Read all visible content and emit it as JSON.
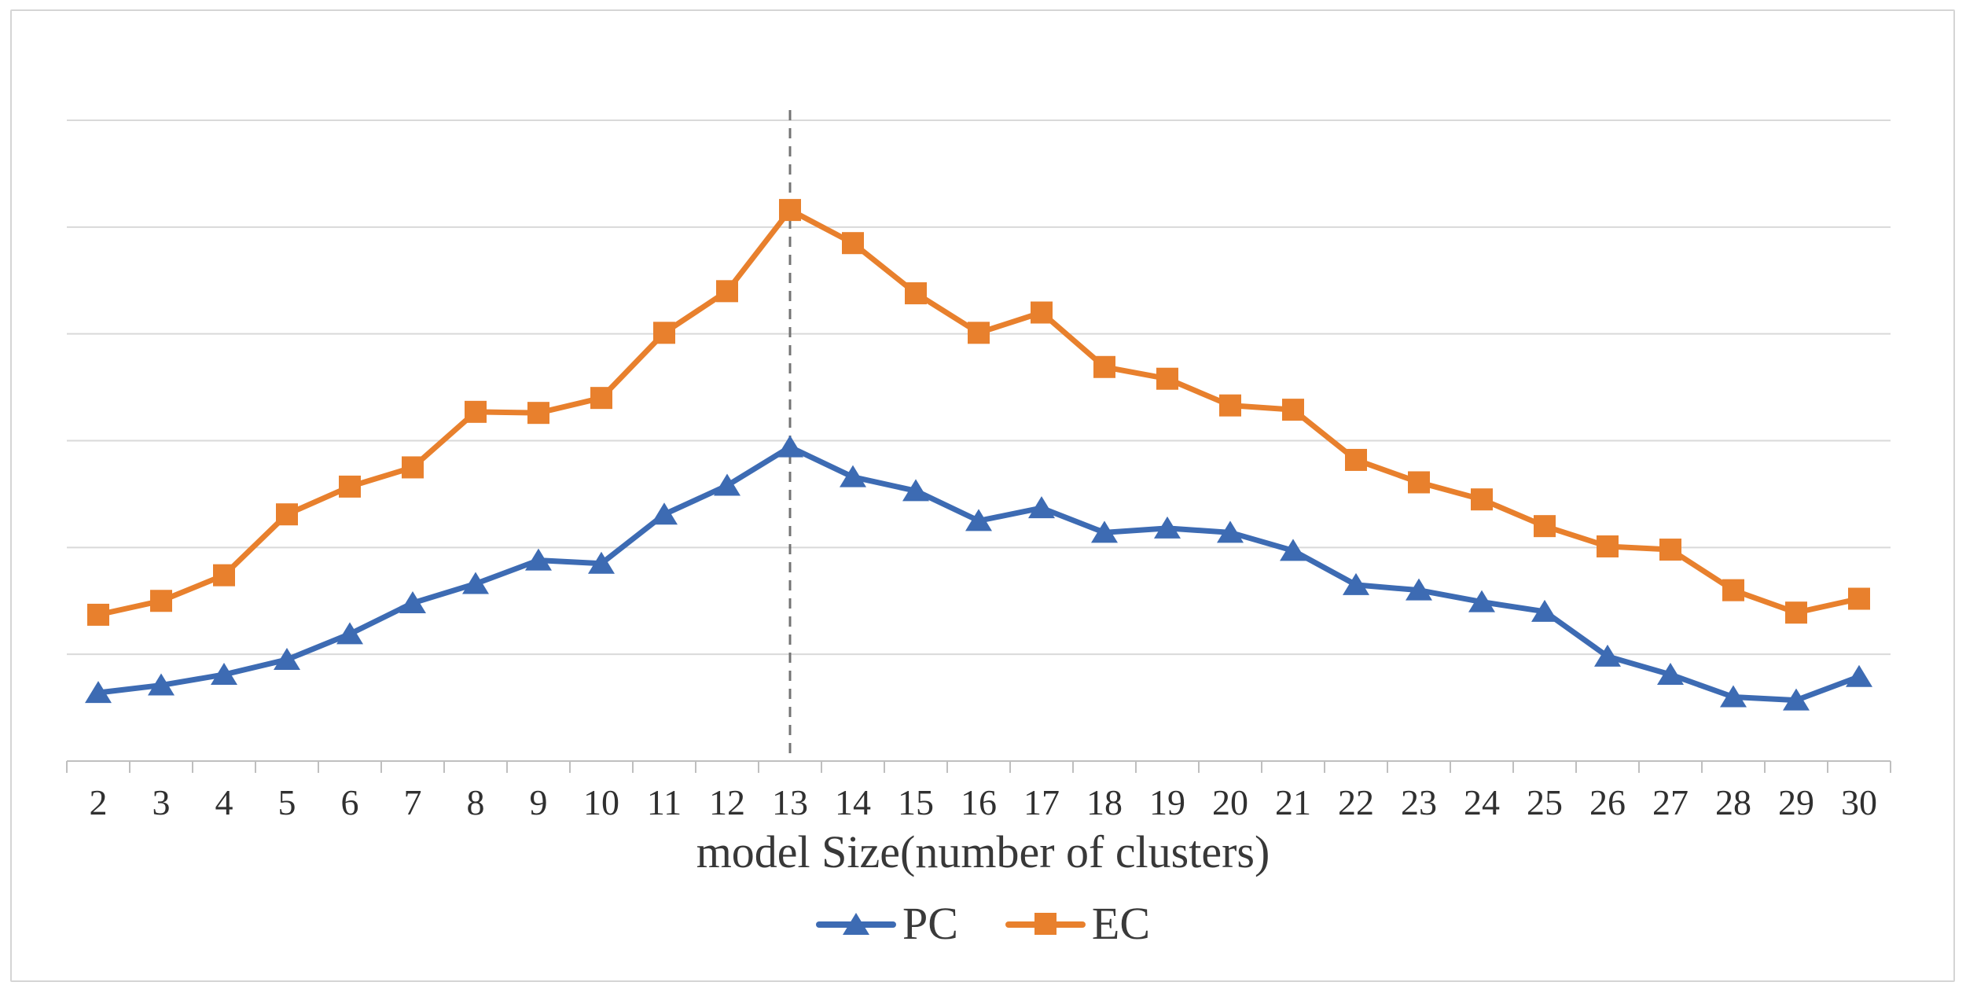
{
  "frame": {
    "border_color": "#d5d5d5",
    "background": "#ffffff"
  },
  "axis_title": "model Size(number of clusters)",
  "legend": {
    "items": [
      {
        "label": "PC"
      },
      {
        "label": "EC"
      }
    ]
  },
  "chart_data": {
    "type": "line",
    "title": "",
    "xlabel": "model Size(number of clusters)",
    "ylabel": "",
    "categories": [
      2,
      3,
      4,
      5,
      6,
      7,
      8,
      9,
      10,
      11,
      12,
      13,
      14,
      15,
      16,
      17,
      18,
      19,
      20,
      21,
      22,
      23,
      24,
      25,
      26,
      27,
      28,
      29,
      30
    ],
    "series": [
      {
        "name": "PC",
        "color": "#3d6bb3",
        "marker": "triangle",
        "values": [
          0.64,
          0.71,
          0.81,
          0.95,
          1.19,
          1.48,
          1.66,
          1.88,
          1.85,
          2.31,
          2.58,
          2.94,
          2.66,
          2.53,
          2.25,
          2.37,
          2.14,
          2.18,
          2.14,
          1.97,
          1.65,
          1.6,
          1.49,
          1.4,
          0.98,
          0.81,
          0.6,
          0.57,
          0.79
        ]
      },
      {
        "name": "EC",
        "color": "#e8802d",
        "marker": "square",
        "values": [
          1.37,
          1.5,
          1.74,
          2.31,
          2.57,
          2.75,
          3.27,
          3.26,
          3.4,
          4.01,
          4.4,
          5.16,
          4.85,
          4.38,
          4.01,
          4.2,
          3.69,
          3.58,
          3.33,
          3.29,
          2.82,
          2.61,
          2.45,
          2.2,
          2.01,
          1.98,
          1.6,
          1.39,
          1.52
        ]
      }
    ],
    "ylim": [
      0,
      6
    ],
    "y_axis_labels": "none",
    "gridline_count": 6,
    "grid": true,
    "legend_position": "bottom",
    "annotations": [
      {
        "type": "vline",
        "at_category": 13,
        "style": "dashed",
        "color": "#747474"
      }
    ],
    "colors": {
      "gridline": "#d9d9d9",
      "axis_line": "#bfbfbf",
      "tick": "#bfbfbf",
      "text": "#383838"
    }
  }
}
